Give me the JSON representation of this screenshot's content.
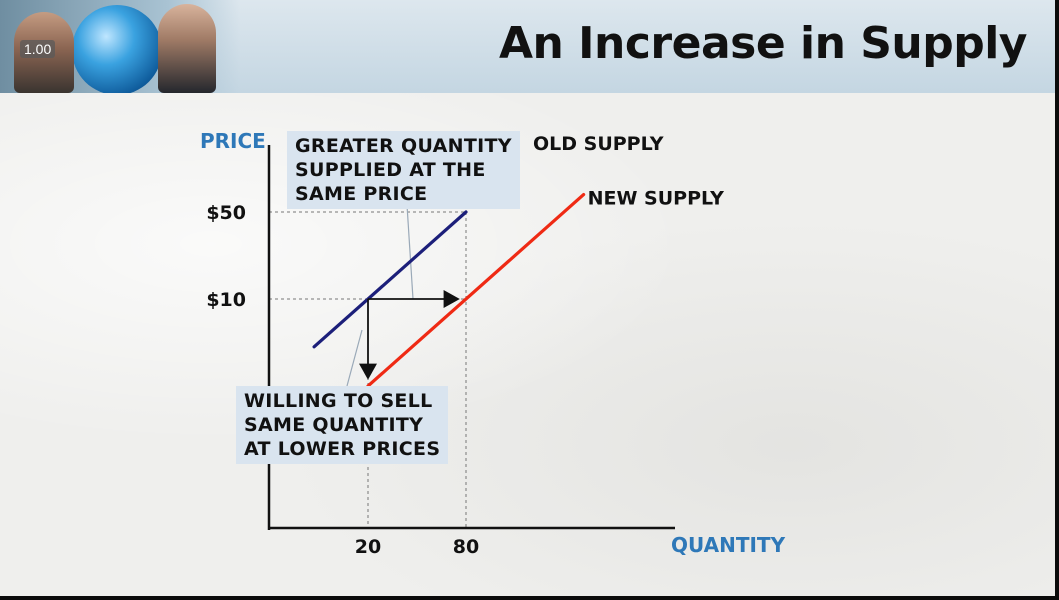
{
  "header": {
    "title": "An Increase in Supply",
    "speed_badge": "1.00"
  },
  "callouts": {
    "top": [
      "GREATER QUANTITY",
      "SUPPLIED AT THE",
      "SAME PRICE"
    ],
    "bottom": [
      "WILLING TO SELL",
      "SAME QUANTITY",
      "AT LOWER PRICES"
    ]
  },
  "colors": {
    "old_supply": "#1c1f7a",
    "new_supply": "#ef2a14",
    "axis_label": "#2e78b8"
  },
  "chart_data": {
    "type": "line",
    "xlabel": "QUANTITY",
    "ylabel": "PRICE",
    "x_ticks": [
      20,
      80
    ],
    "y_ticks": [
      {
        "value": 10,
        "label": "$10"
      },
      {
        "value": 50,
        "label": "$50"
      }
    ],
    "series": [
      {
        "name": "OLD SUPPLY",
        "points": [
          [
            20,
            10
          ],
          [
            80,
            50
          ]
        ]
      },
      {
        "name": "NEW SUPPLY",
        "points": [
          [
            80,
            10
          ],
          [
            20,
            -30
          ]
        ]
      }
    ],
    "annotations": [
      {
        "type": "arrow",
        "from": [
          20,
          10
        ],
        "to": [
          80,
          10
        ],
        "meaning": "same price"
      },
      {
        "type": "arrow",
        "from": [
          20,
          10
        ],
        "to": [
          20,
          -30
        ],
        "meaning": "same quantity"
      }
    ]
  }
}
